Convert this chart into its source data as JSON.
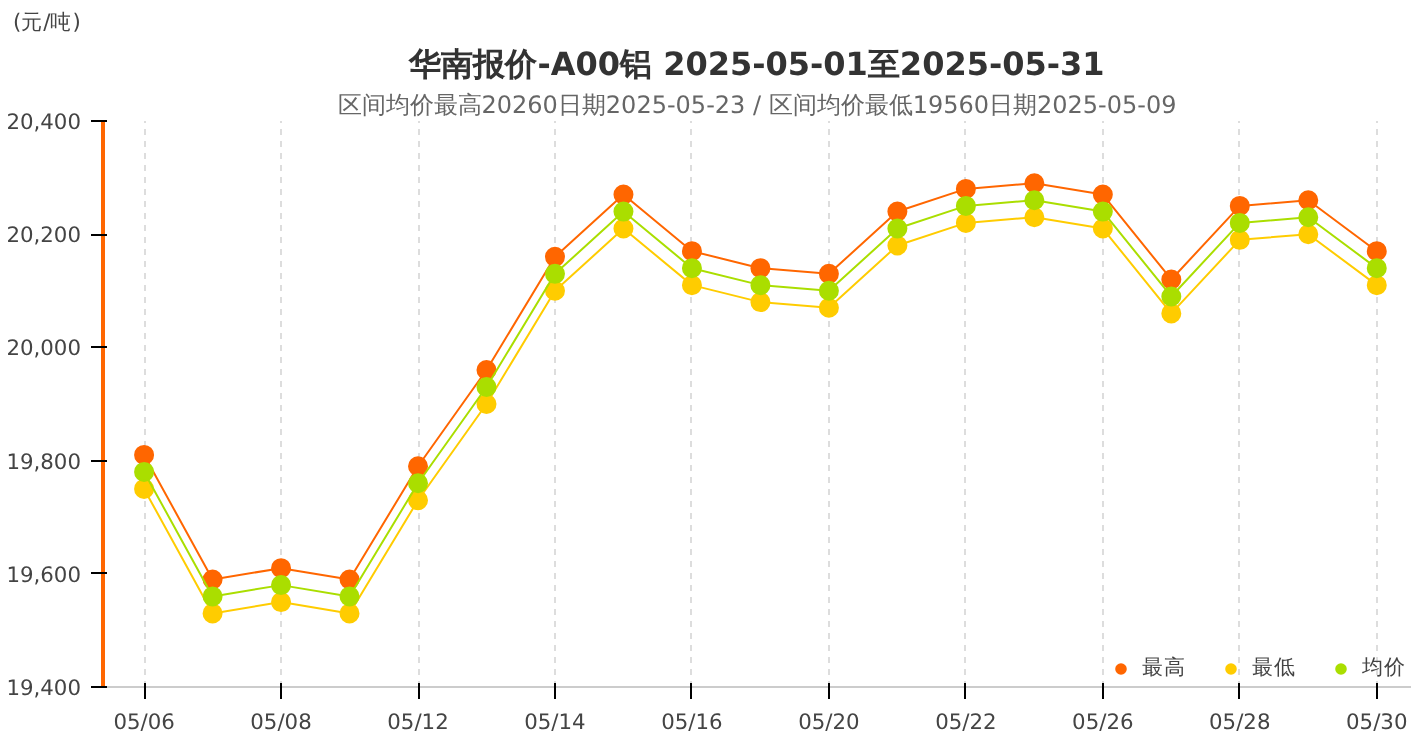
{
  "chart_data": {
    "type": "line",
    "title": "华南报价-A00铝 2025-05-01至2025-05-31",
    "subtitle": "区间均价最高20260日期2025-05-23 / 区间均价最低19560日期2025-05-09",
    "annotations": [
      "(元/吨)"
    ],
    "categories": [
      "05/06",
      null,
      "05/08",
      null,
      "05/12",
      null,
      "05/14",
      null,
      "05/16",
      null,
      "05/20",
      null,
      "05/22",
      null,
      "05/26",
      null,
      "05/28",
      null,
      "05/30"
    ],
    "series": [
      {
        "name": "最高",
        "color": "#ff6600",
        "values": [
          19810,
          19590,
          19610,
          19590,
          19790,
          19960,
          20160,
          20270,
          20170,
          20140,
          20130,
          20240,
          20280,
          20290,
          20270,
          20120,
          20250,
          20260,
          20170
        ]
      },
      {
        "name": "最低",
        "color": "#ffcc00",
        "values": [
          19750,
          19530,
          19550,
          19530,
          19730,
          19900,
          20100,
          20210,
          20110,
          20080,
          20070,
          20180,
          20220,
          20230,
          20210,
          20060,
          20190,
          20200,
          20110
        ]
      },
      {
        "name": "均价",
        "color": "#aade00",
        "values": [
          19780,
          19560,
          19580,
          19560,
          19760,
          19930,
          20130,
          20240,
          20140,
          20110,
          20100,
          20210,
          20250,
          20260,
          20240,
          20090,
          20220,
          20230,
          20140
        ]
      }
    ],
    "ylim": [
      19400,
      20400
    ],
    "yticks": [
      {
        "value": 19400,
        "label": "19,400"
      },
      {
        "value": 19600,
        "label": "19,600"
      },
      {
        "value": 19800,
        "label": "19,800"
      },
      {
        "value": 20000,
        "label": "20,000"
      },
      {
        "value": 20200,
        "label": "20,200"
      },
      {
        "value": 20400,
        "label": "20,400"
      }
    ],
    "grid": "x",
    "legend": "bottom right",
    "marker": "circle",
    "line_style": "solid"
  }
}
